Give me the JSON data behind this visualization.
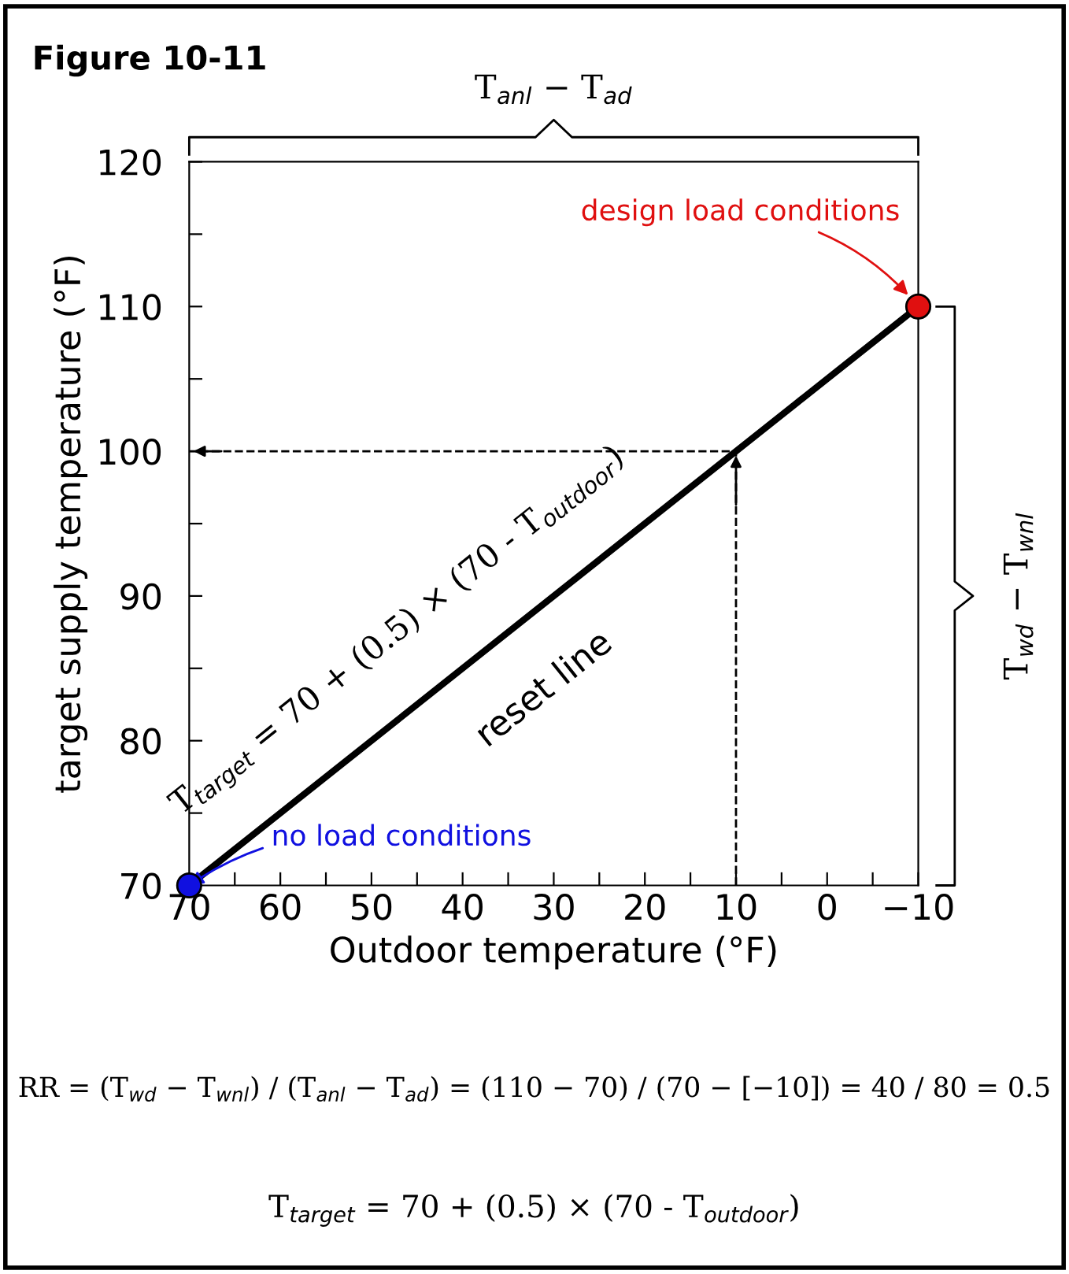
{
  "chart_data": {
    "type": "line",
    "title": "Figure 10-11",
    "xlabel": "Outdoor temperature (°F)",
    "ylabel": "target supply temperature (°F)",
    "xlim": [
      70,
      -10
    ],
    "ylim": [
      70,
      120
    ],
    "xticks": [
      70,
      {
        "value": 65,
        "label": null
      },
      60,
      {
        "value": 55,
        "label": null
      },
      50,
      {
        "value": 45,
        "label": null
      },
      40,
      {
        "value": 35,
        "label": null
      },
      30,
      {
        "value": 25,
        "label": null
      },
      20,
      {
        "value": 15,
        "label": null
      },
      10,
      {
        "value": 5,
        "label": null
      },
      0,
      {
        "value": -5,
        "label": null
      },
      {
        "value": -10,
        "label": "−10"
      }
    ],
    "yticks": [
      70,
      {
        "value": 75,
        "label": null
      },
      80,
      {
        "value": 85,
        "label": null
      },
      90,
      {
        "value": 95,
        "label": null
      },
      100,
      {
        "value": 105,
        "label": null
      },
      110,
      {
        "value": 115,
        "label": null
      },
      120
    ],
    "grid": false,
    "legend": false,
    "series": [
      {
        "color": "#000000",
        "x": [
          70,
          -10
        ],
        "values": [
          70,
          110
        ],
        "line_style": "solid",
        "marker": "none"
      },
      {
        "color": "#000000",
        "x": [
          10,
          10,
          70
        ],
        "values": [
          70,
          100,
          100
        ],
        "line_style": "dashed",
        "marker": "none"
      },
      {
        "type": "scatter",
        "colors": [
          "#1010e0",
          "#e01010"
        ],
        "x": [
          70,
          -10
        ],
        "values": [
          70,
          110
        ],
        "marker": "circle"
      }
    ],
    "annotations": [
      {
        "text": "design load conditions",
        "x": -10,
        "y": 110
      },
      {
        "text": "no load conditions",
        "x": 70,
        "y": 70
      },
      "reset line",
      "T$_{target}$ = 70 + (0.5) × (70 - T$_{outdoor}$)",
      "T$_{anl}$ − T$_{ad}$",
      "T$_{wd}$ − T$_{wnl}$",
      "RR = (T$_{wd}$ − T$_{wnl}$) / (T$_{anl}$ − T$_{ad}$) = (110 − 70) / (70 − [−10]) = 40 / 80 = 0.5",
      "T$_{target}$ = 70 + (0.5) × (70 - T$_{outdoor}$)"
    ]
  }
}
